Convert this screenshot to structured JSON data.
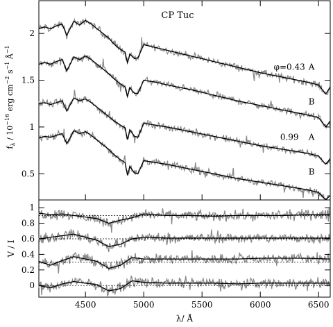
{
  "chart_data": [
    {
      "type": "line",
      "title": "CP Tuc",
      "xlabel": "",
      "ylabel": "f_λ / 10^-16 erg cm^-2 s^-1 Å^-1",
      "ylabel_parts": {
        "main": "f",
        "sub": "λ",
        "mid": " / 10",
        "e1": "−16",
        "t2": " erg cm",
        "e2": "−2",
        "t3": " s",
        "e3": "−1",
        "t4": " Å",
        "e4": "−1"
      },
      "xlim": [
        4100,
        6600
      ],
      "ylim": [
        0.22,
        2.35
      ],
      "yticks": [
        0.5,
        1,
        1.5,
        2
      ],
      "ytick_labels": [
        "0.5",
        "1",
        "1.5",
        "2"
      ],
      "grid": false,
      "series": [
        {
          "x": [
            4100,
            4150,
            4200,
            4250,
            4300,
            4340,
            4400,
            4450,
            4500,
            4550,
            4600,
            4650,
            4700,
            4750,
            4800,
            4840,
            4861,
            4880,
            4920,
            4950,
            5000,
            5100,
            5200,
            5400,
            5600,
            5800,
            6000,
            6200,
            6400,
            6500,
            6562,
            6600
          ],
          "values": [
            2.05,
            2.07,
            2.05,
            2.08,
            2.1,
            1.98,
            2.13,
            2.09,
            2.14,
            2.1,
            2.05,
            2.0,
            1.95,
            1.88,
            1.83,
            1.8,
            1.68,
            1.78,
            1.73,
            1.74,
            1.88,
            1.85,
            1.82,
            1.76,
            1.7,
            1.64,
            1.58,
            1.53,
            1.48,
            1.45,
            1.35,
            1.43
          ]
        },
        {
          "x": [
            4100,
            4150,
            4200,
            4250,
            4300,
            4340,
            4400,
            4450,
            4500,
            4550,
            4600,
            4650,
            4700,
            4750,
            4800,
            4840,
            4861,
            4880,
            4920,
            4950,
            5000,
            5100,
            5200,
            5400,
            5600,
            5800,
            6000,
            6200,
            6400,
            6500,
            6562,
            6600
          ],
          "values": [
            1.67,
            1.69,
            1.67,
            1.7,
            1.72,
            1.6,
            1.75,
            1.72,
            1.76,
            1.72,
            1.67,
            1.62,
            1.57,
            1.51,
            1.46,
            1.43,
            1.32,
            1.42,
            1.36,
            1.36,
            1.5,
            1.48,
            1.45,
            1.4,
            1.34,
            1.28,
            1.23,
            1.18,
            1.13,
            1.1,
            1.0,
            1.06
          ]
        },
        {
          "x": [
            4100,
            4150,
            4200,
            4250,
            4300,
            4340,
            4400,
            4450,
            4500,
            4550,
            4600,
            4650,
            4700,
            4750,
            4800,
            4840,
            4861,
            4880,
            4920,
            4950,
            5000,
            5100,
            5200,
            5400,
            5600,
            5800,
            6000,
            6200,
            6400,
            6500,
            6562,
            6600
          ],
          "values": [
            1.25,
            1.26,
            1.24,
            1.26,
            1.28,
            1.17,
            1.31,
            1.28,
            1.3,
            1.26,
            1.21,
            1.16,
            1.11,
            1.06,
            1.02,
            0.99,
            0.86,
            0.97,
            0.9,
            0.89,
            1.04,
            1.02,
            1.0,
            0.95,
            0.9,
            0.85,
            0.8,
            0.76,
            0.72,
            0.69,
            0.6,
            0.66
          ]
        },
        {
          "x": [
            4100,
            4150,
            4200,
            4250,
            4300,
            4340,
            4400,
            4450,
            4500,
            4550,
            4600,
            4650,
            4700,
            4750,
            4800,
            4840,
            4861,
            4880,
            4920,
            4950,
            5000,
            5100,
            5200,
            5400,
            5600,
            5800,
            6000,
            6200,
            6400,
            6500,
            6562,
            6600
          ],
          "values": [
            0.88,
            0.9,
            0.89,
            0.91,
            0.93,
            0.82,
            0.96,
            0.93,
            0.95,
            0.91,
            0.86,
            0.81,
            0.76,
            0.7,
            0.65,
            0.62,
            0.48,
            0.58,
            0.51,
            0.5,
            0.64,
            0.62,
            0.6,
            0.55,
            0.5,
            0.45,
            0.41,
            0.37,
            0.33,
            0.3,
            0.22,
            0.27
          ]
        }
      ],
      "annotations": [
        {
          "text": "φ=0.43",
          "x": 6250,
          "y": 1.64
        },
        {
          "text": "A",
          "x": 6440,
          "y": 1.64
        },
        {
          "text": "B",
          "x": 6440,
          "y": 1.27
        },
        {
          "text": "0.99",
          "x": 6250,
          "y": 0.89
        },
        {
          "text": "A",
          "x": 6440,
          "y": 0.89
        },
        {
          "text": "B",
          "x": 6440,
          "y": 0.52
        }
      ]
    },
    {
      "type": "line",
      "title": "",
      "xlabel": "λ/ Å",
      "ylabel": "V / I",
      "xlim": [
        4100,
        6600
      ],
      "ylim": [
        -0.15,
        1.1
      ],
      "xticks": [
        4500,
        5000,
        5500,
        6000,
        6500
      ],
      "xtick_labels": [
        "4500",
        "5000",
        "5500",
        "6000",
        "6500"
      ],
      "yticks": [
        0,
        0.2,
        0.4,
        0.6,
        0.8,
        1
      ],
      "ytick_labels": [
        "0",
        "0.2",
        "0.4",
        "0.6",
        "0.8",
        "1"
      ],
      "grid": false,
      "baselines": [
        0.9,
        0.6,
        0.3,
        0.0
      ],
      "series": [
        {
          "x": [
            4100,
            4200,
            4300,
            4400,
            4500,
            4600,
            4700,
            4800,
            4900,
            5000,
            5200,
            5400,
            5600,
            5800,
            6000,
            6200,
            6400,
            6600
          ],
          "values": [
            0.93,
            0.91,
            0.92,
            0.9,
            0.88,
            0.86,
            0.8,
            0.84,
            0.87,
            0.92,
            0.9,
            0.9,
            0.89,
            0.9,
            0.9,
            0.9,
            0.91,
            0.91
          ]
        },
        {
          "x": [
            4100,
            4200,
            4300,
            4400,
            4500,
            4600,
            4700,
            4800,
            4900,
            5000,
            5200,
            5400,
            5600,
            5800,
            6000,
            6200,
            6400,
            6600
          ],
          "values": [
            0.6,
            0.62,
            0.64,
            0.66,
            0.62,
            0.58,
            0.5,
            0.53,
            0.6,
            0.62,
            0.61,
            0.61,
            0.61,
            0.61,
            0.61,
            0.61,
            0.61,
            0.61
          ]
        },
        {
          "x": [
            4100,
            4200,
            4300,
            4400,
            4500,
            4600,
            4700,
            4800,
            4900,
            5000,
            5200,
            5400,
            5600,
            5800,
            6000,
            6200,
            6400,
            6600
          ],
          "values": [
            0.31,
            0.26,
            0.32,
            0.37,
            0.34,
            0.31,
            0.22,
            0.26,
            0.36,
            0.34,
            0.34,
            0.34,
            0.34,
            0.34,
            0.35,
            0.35,
            0.35,
            0.34
          ]
        },
        {
          "x": [
            4100,
            4200,
            4300,
            4400,
            4500,
            4600,
            4700,
            4800,
            4900,
            5000,
            5200,
            5400,
            5600,
            5800,
            6000,
            6200,
            6400,
            6600
          ],
          "values": [
            0.0,
            -0.03,
            0.02,
            0.05,
            0.03,
            0.01,
            -0.07,
            -0.04,
            0.06,
            0.04,
            0.03,
            0.03,
            0.03,
            0.02,
            0.03,
            0.03,
            0.03,
            0.03
          ]
        }
      ]
    }
  ]
}
